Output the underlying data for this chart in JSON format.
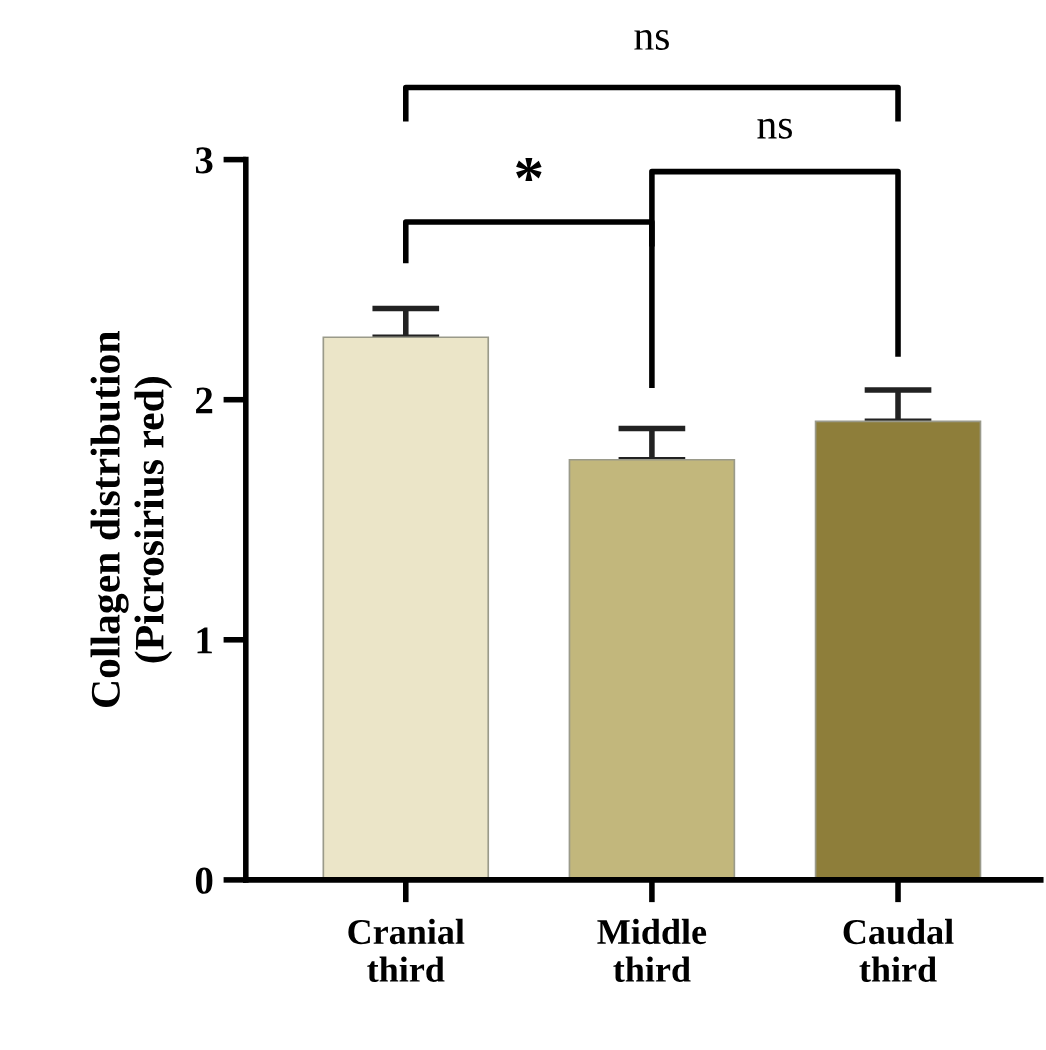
{
  "chart_data": {
    "type": "bar",
    "ylabel": "Collagen distribution\n(Picrosirius red)",
    "categories": [
      "Cranial\nthird",
      "Middle\nthird",
      "Caudal\nthird"
    ],
    "values": [
      2.26,
      1.75,
      1.91
    ],
    "colors": [
      "#ebe5c8",
      "#c2b77c",
      "#8e7e3a"
    ],
    "errors": [
      [
        2.26,
        2.38
      ],
      [
        1.75,
        1.88
      ],
      [
        1.91,
        2.04
      ]
    ],
    "ylim": [
      0,
      3
    ],
    "yticks": [
      0,
      1,
      2,
      3
    ],
    "grid": false,
    "legend": false,
    "annotations": [
      "ns",
      "*",
      "ns"
    ]
  }
}
